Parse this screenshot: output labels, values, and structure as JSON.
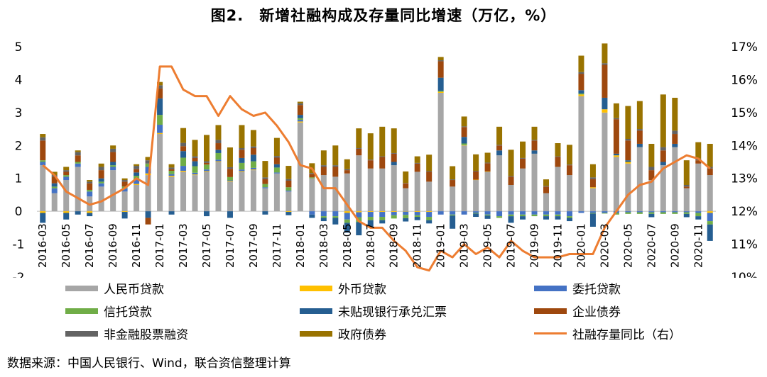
{
  "title": "图2.　新增社融构成及存量同比增速（万亿，%）",
  "source": "数据来源：中国人民银行、Wind，联合资信整理计算",
  "colors": {
    "rmb_loans": "#a6a6a6",
    "fx_loans": "#ffc000",
    "entrusted": "#4472c4",
    "trust": "#70ad47",
    "bankers_accept": "#255e91",
    "corp_bonds": "#9e480e",
    "equity": "#636363",
    "gov_bonds": "#997300",
    "growth_line": "#ed7d31"
  },
  "chart_data": {
    "type": "bar",
    "stacked": true,
    "title": "图2.　新增社融构成及存量同比增速（万亿，%）",
    "x": [
      "2016-03",
      "2016-04",
      "2016-05",
      "2016-06",
      "2016-07",
      "2016-08",
      "2016-09",
      "2016-10",
      "2016-11",
      "2016-12",
      "2017-01",
      "2017-02",
      "2017-03",
      "2017-04",
      "2017-05",
      "2017-06",
      "2017-07",
      "2017-08",
      "2017-09",
      "2017-10",
      "2017-11",
      "2017-12",
      "2018-01",
      "2018-02",
      "2018-03",
      "2018-04",
      "2018-05",
      "2018-06",
      "2018-07",
      "2018-08",
      "2018-09",
      "2018-10",
      "2018-11",
      "2018-12",
      "2019-01",
      "2019-02",
      "2019-03",
      "2019-04",
      "2019-05",
      "2019-06",
      "2019-07",
      "2019-08",
      "2019-09",
      "2019-10",
      "2019-11",
      "2019-12",
      "2020-01",
      "2020-02",
      "2020-03",
      "2020-04",
      "2020-05",
      "2020-06",
      "2020-07",
      "2020-08",
      "2020-09",
      "2020-10",
      "2020-11",
      "2020-12"
    ],
    "x_tick_labels": [
      "2016-03",
      "2016-05",
      "2016-07",
      "2016-09",
      "2016-11",
      "2017-01",
      "2017-03",
      "2017-05",
      "2017-07",
      "2017-09",
      "2017-11",
      "2018-01",
      "2018-03",
      "2018-05",
      "2018-07",
      "2018-09",
      "2018-11",
      "2019-01",
      "2019-03",
      "2019-05",
      "2019-07",
      "2019-09",
      "2019-11",
      "2020-01",
      "2020-03",
      "2020-05",
      "2020-07",
      "2020-09",
      "2020-11"
    ],
    "ylim": [
      -2,
      5
    ],
    "y_ticks": [
      -2,
      -1,
      0,
      1,
      2,
      3,
      4,
      5
    ],
    "y2lim": [
      10,
      17
    ],
    "y2_ticks": [
      "10%",
      "11%",
      "12%",
      "13%",
      "14%",
      "15%",
      "16%",
      "17%"
    ],
    "series": [
      {
        "name": "人民币贷款",
        "values": [
          1.4,
          0.55,
          0.95,
          1.35,
          0.45,
          0.75,
          1.25,
          0.6,
          0.8,
          1.1,
          2.35,
          1.05,
          1.2,
          1.1,
          1.2,
          1.5,
          0.9,
          1.2,
          1.25,
          0.7,
          1.15,
          0.6,
          2.7,
          1.0,
          1.1,
          1.05,
          1.15,
          1.7,
          1.3,
          1.3,
          1.4,
          0.7,
          1.2,
          0.9,
          3.6,
          0.75,
          2.0,
          0.95,
          1.2,
          1.7,
          0.8,
          1.3,
          1.75,
          0.55,
          1.35,
          1.1,
          3.5,
          0.7,
          3.0,
          1.65,
          1.45,
          1.95,
          0.95,
          1.4,
          1.95,
          0.7,
          1.45,
          1.1
        ]
      },
      {
        "name": "外币贷款",
        "values": [
          -0.05,
          0,
          -0.05,
          0,
          -0.05,
          0,
          0,
          -0.02,
          0.03,
          0.05,
          0.03,
          0.03,
          0.03,
          0.02,
          0.02,
          0.02,
          0.02,
          0.02,
          0.02,
          0,
          0,
          -0.02,
          0.03,
          0,
          0,
          0,
          -0.05,
          -0.03,
          -0.02,
          -0.02,
          -0.02,
          -0.01,
          -0.02,
          -0.02,
          0.03,
          0,
          0.01,
          0.01,
          0.01,
          0,
          0,
          0,
          0,
          0,
          0,
          0,
          0.05,
          0.03,
          0.1,
          0.05,
          0.05,
          0,
          0,
          0,
          0,
          0,
          0,
          -0.05
        ]
      },
      {
        "name": "委托贷款",
        "values": [
          0.1,
          0.15,
          0.1,
          0.1,
          0.15,
          0.1,
          0.1,
          0.1,
          0.15,
          0.2,
          0.25,
          0.05,
          0.15,
          0.05,
          0.05,
          0.05,
          0.02,
          0.05,
          0.05,
          0.03,
          0.03,
          0.03,
          0.05,
          -0.1,
          -0.15,
          -0.15,
          -0.2,
          -0.15,
          -0.15,
          -0.15,
          -0.1,
          -0.1,
          -0.1,
          -0.15,
          -0.1,
          -0.1,
          -0.1,
          -0.05,
          -0.1,
          -0.15,
          -0.1,
          -0.1,
          -0.1,
          -0.1,
          -0.1,
          -0.15,
          -0.05,
          -0.05,
          -0.05,
          -0.05,
          -0.03,
          -0.03,
          -0.03,
          -0.03,
          -0.03,
          -0.03,
          -0.05,
          -0.25
        ]
      },
      {
        "name": "信托贷款",
        "values": [
          0.05,
          0.05,
          0.05,
          0.05,
          0.05,
          0.05,
          0.05,
          0.05,
          0.1,
          0.1,
          0.3,
          0.1,
          0.25,
          0.2,
          0.15,
          0.2,
          0.1,
          0.2,
          0.2,
          0.1,
          0.15,
          0.1,
          0.05,
          0.03,
          -0.05,
          -0.05,
          -0.1,
          -0.15,
          -0.1,
          -0.1,
          -0.1,
          -0.1,
          -0.05,
          -0.1,
          0.03,
          -0.03,
          0.05,
          -0.02,
          -0.03,
          -0.05,
          -0.05,
          -0.05,
          -0.05,
          -0.05,
          -0.05,
          -0.05,
          0.03,
          -0.02,
          -0.02,
          -0.05,
          -0.05,
          -0.05,
          -0.05,
          -0.05,
          -0.05,
          -0.05,
          -0.1,
          -0.1
        ]
      },
      {
        "name": "未贴现银行承兑汇票",
        "values": [
          -0.3,
          0.1,
          -0.2,
          -0.1,
          -0.1,
          0.1,
          0.1,
          -0.2,
          0.1,
          -0.2,
          0.5,
          -0.1,
          0.2,
          0.15,
          -0.15,
          0.1,
          -0.2,
          0.15,
          0.2,
          -0.1,
          0.1,
          -0.1,
          0.1,
          -0.1,
          -0.1,
          -0.2,
          -0.3,
          -0.4,
          -0.2,
          -0.1,
          0.1,
          -0.1,
          -0.1,
          -0.1,
          0.4,
          -0.4,
          0.2,
          -0.1,
          -0.1,
          0.15,
          -0.2,
          -0.1,
          0.1,
          -0.1,
          -0.1,
          -0.1,
          0.1,
          -0.4,
          0.35,
          0.05,
          0.05,
          0.1,
          -0.1,
          0.1,
          0.1,
          -0.1,
          -0.1,
          -0.5
        ]
      },
      {
        "name": "企业债券",
        "values": [
          0.6,
          0.2,
          0.1,
          0.2,
          0.2,
          0.25,
          0.3,
          0.15,
          0.1,
          -0.2,
          0.3,
          0.05,
          0.15,
          0.1,
          0.05,
          0.2,
          0.25,
          0.25,
          0.2,
          0.15,
          0.2,
          0.2,
          0.3,
          0.1,
          0.25,
          0.3,
          0.1,
          0.2,
          0.25,
          0.35,
          0.25,
          0.15,
          0.25,
          0.3,
          0.5,
          0.2,
          0.3,
          0.25,
          0.25,
          0.15,
          0.25,
          0.3,
          0.3,
          0.2,
          0.3,
          0.3,
          0.5,
          0.25,
          1.0,
          1.05,
          0.6,
          0.4,
          0.3,
          0.35,
          0.3,
          0.05,
          0.1,
          0.2
        ]
      },
      {
        "name": "非金融股票融资",
        "values": [
          0.1,
          0.05,
          0.05,
          0.1,
          0.05,
          0.1,
          0.1,
          0.05,
          0.1,
          0.1,
          0.1,
          0.05,
          0.1,
          0.05,
          0.05,
          0.1,
          0.05,
          0.05,
          0.05,
          0.05,
          0.05,
          0.05,
          0.05,
          0.03,
          0.05,
          0.05,
          0.03,
          0.02,
          0.02,
          0.02,
          0.02,
          0.01,
          0.02,
          0.02,
          0.03,
          0.02,
          0.02,
          0.02,
          0.02,
          0.02,
          0.02,
          0.02,
          0.02,
          0.02,
          0.02,
          0.02,
          0.05,
          0.05,
          0.05,
          0.03,
          0.05,
          0.05,
          0.1,
          0.1,
          0.1,
          0.05,
          0.05,
          0.05
        ]
      },
      {
        "name": "政府债券",
        "values": [
          0.1,
          0.1,
          0.1,
          0.05,
          0.05,
          0.1,
          0.1,
          0.05,
          0.05,
          0.1,
          0.1,
          0.1,
          0.45,
          0.5,
          0.8,
          0.45,
          0.6,
          0.7,
          0.5,
          0.5,
          0.55,
          0.4,
          0.05,
          0.3,
          0.45,
          0.6,
          0.3,
          0.6,
          0.8,
          0.9,
          0.75,
          0.35,
          0.2,
          0.5,
          0.1,
          0.4,
          0.3,
          0.5,
          0.3,
          0.55,
          0.8,
          0.5,
          0.4,
          0.2,
          0.4,
          0.6,
          0.5,
          0.4,
          0.6,
          0.45,
          1.0,
          0.85,
          0.7,
          1.6,
          1.0,
          0.75,
          0.5,
          0.7
        ]
      }
    ],
    "line": {
      "name": "社融存量同比（右）",
      "axis": "right",
      "values": [
        13.4,
        13.1,
        12.6,
        12.4,
        12.2,
        12.3,
        12.5,
        12.7,
        13.0,
        12.8,
        16.4,
        16.4,
        15.7,
        15.5,
        15.5,
        14.9,
        15.5,
        15.1,
        14.9,
        15.0,
        14.6,
        14.1,
        13.4,
        13.3,
        12.7,
        12.7,
        12.2,
        11.7,
        11.5,
        11.5,
        11.1,
        10.8,
        10.3,
        10.2,
        10.8,
        10.6,
        11.0,
        10.7,
        10.9,
        10.6,
        11.1,
        10.8,
        10.6,
        10.6,
        10.6,
        10.7,
        10.7,
        10.7,
        11.5,
        12.0,
        12.5,
        12.8,
        12.9,
        13.3,
        13.5,
        13.7,
        13.6,
        13.3
      ]
    },
    "legend_placement": "bottom"
  }
}
